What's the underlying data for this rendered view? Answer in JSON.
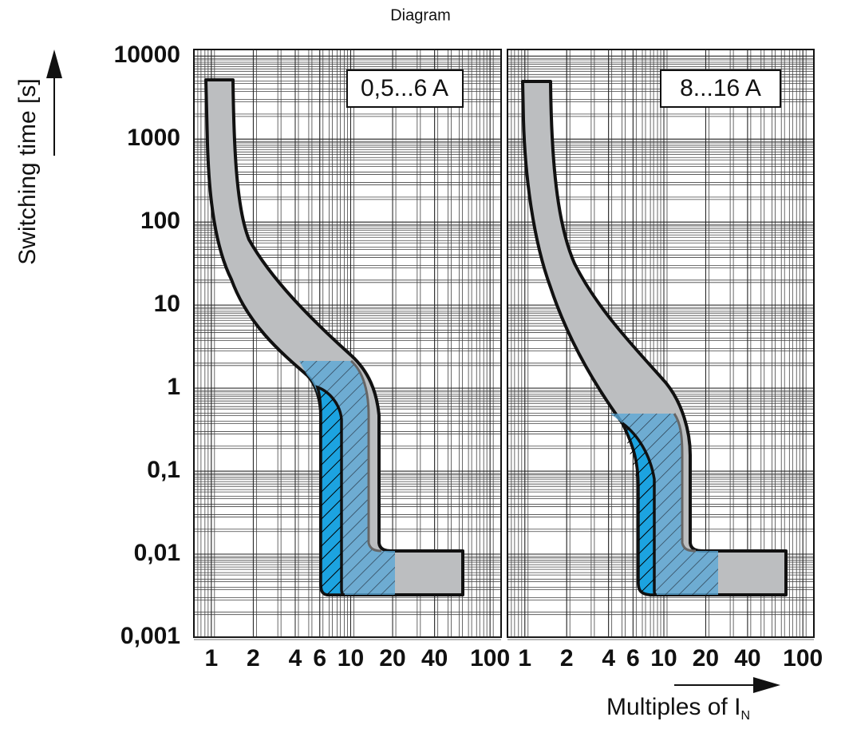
{
  "chart_data": {
    "type": "area",
    "title": "Diagram",
    "ylabel": "Switching time  [s]",
    "xlabel": "Multiples of I",
    "xlabel_sub": "N",
    "panels": [
      {
        "label": "0,5...6 A"
      },
      {
        "label": "8...16 A"
      }
    ],
    "xscale": "log",
    "yscale": "log",
    "grid": true,
    "xlim": [
      0.75,
      120
    ],
    "ylim": [
      0.001,
      12000
    ],
    "xticks": [
      1,
      2,
      4,
      6,
      10,
      20,
      40,
      100
    ],
    "yticks": [
      10000,
      1000,
      100,
      10,
      1,
      {
        "value": 0.1,
        "label": "0,1"
      },
      {
        "value": 0.01,
        "label": "0,01"
      },
      {
        "value": 0.001,
        "label": "0,001"
      }
    ]
  }
}
